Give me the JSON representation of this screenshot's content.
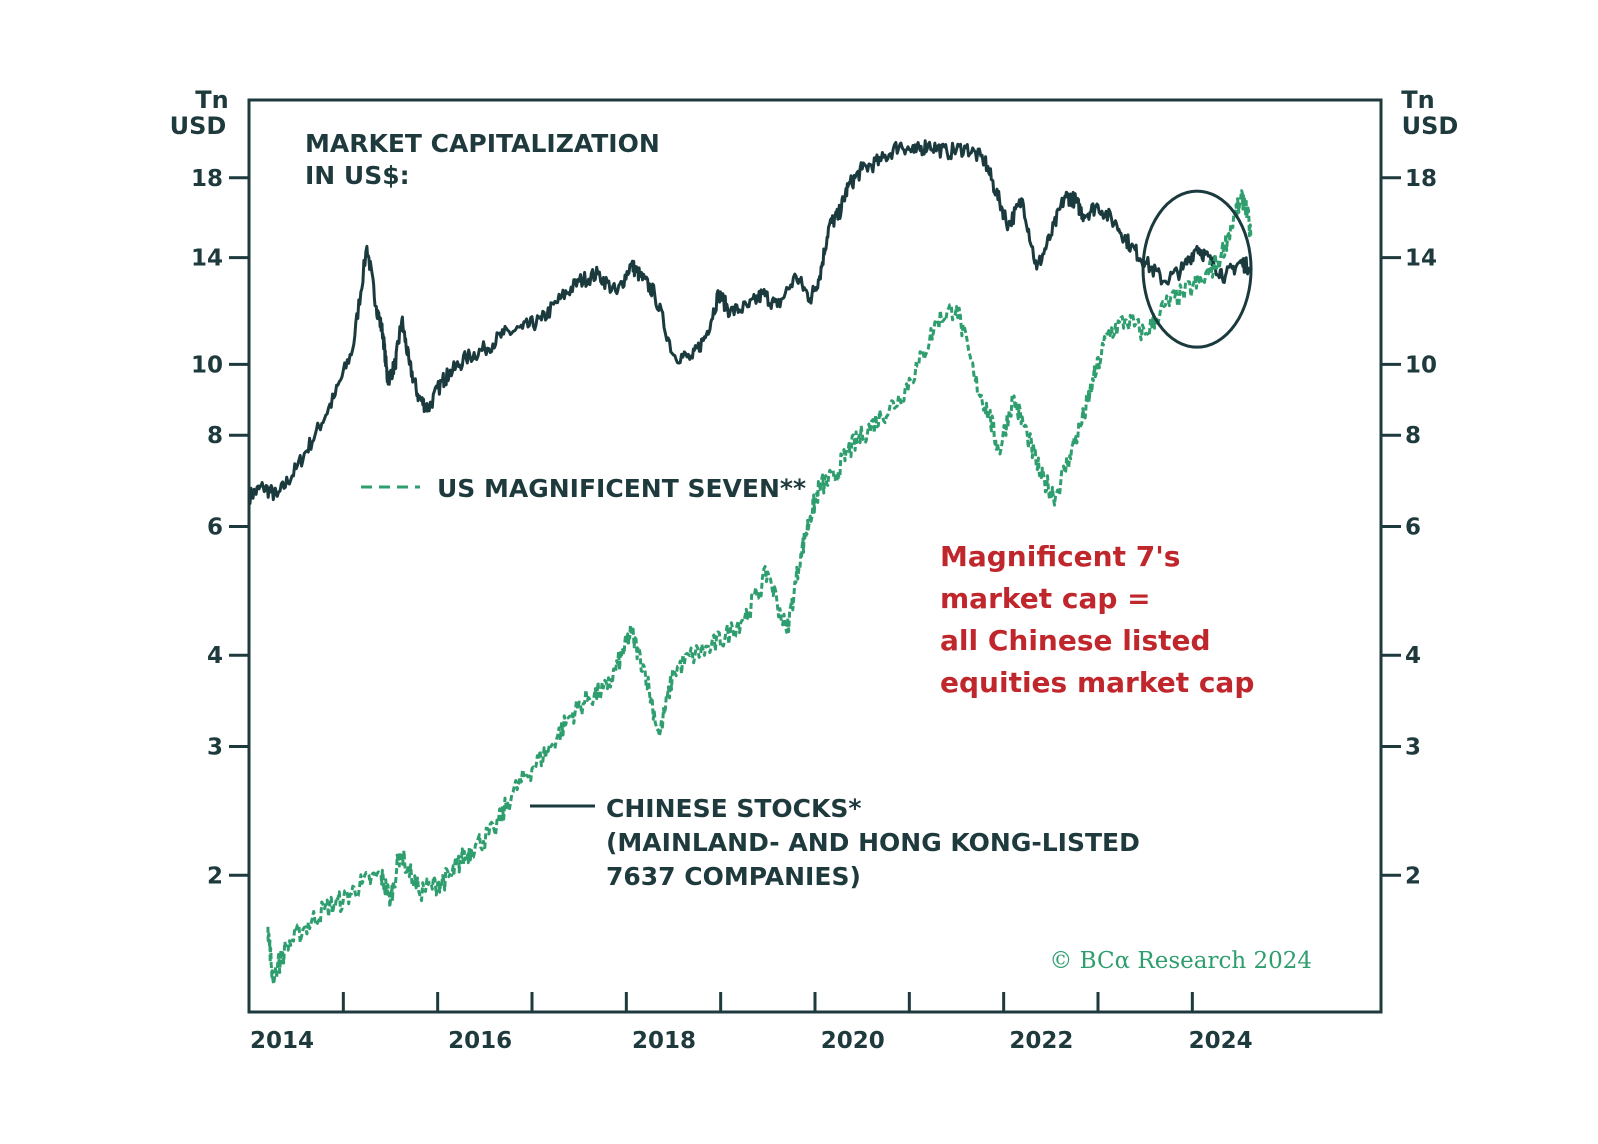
{
  "colors": {
    "chinese": "#1b3a3d",
    "mag7": "#2f9e6e",
    "annotation": "#c0272d",
    "axis": "#1f3a3d"
  },
  "chart_data": {
    "type": "line",
    "title": "MARKET CAPITALIZATION\nIN US$:",
    "title_lines": [
      "MARKET CAPITALIZATION",
      "IN US$:"
    ],
    "y_scale": "log",
    "ylim": [
      1.3,
      23
    ],
    "xlim": [
      2014.0,
      2026.0
    ],
    "y_unit_left": [
      "Tn",
      "USD"
    ],
    "y_unit_right": [
      "Tn",
      "USD"
    ],
    "y_ticks": [
      2,
      3,
      4,
      6,
      8,
      10,
      14,
      18
    ],
    "y_tick_labels": [
      "2",
      "3",
      "4",
      "6",
      "8",
      "10",
      "14",
      "18"
    ],
    "x_ticks": [
      2014,
      2015,
      2016,
      2017,
      2018,
      2019,
      2020,
      2021,
      2022,
      2023,
      2024
    ],
    "x_tick_label_values": [
      2014.35,
      2016.45,
      2018.4,
      2020.4,
      2022.4,
      2024.3
    ],
    "x_tick_labels": [
      "2014",
      "2016",
      "2018",
      "2020",
      "2022",
      "2024"
    ],
    "series": [
      {
        "name": "CHINESE STOCKS*",
        "legend_lines": [
          "CHINESE STOCKS*",
          "(MAINLAND- AND HONG KONG-LISTED",
          "7637 COMPANIES)"
        ],
        "style": "solid",
        "x": [
          2014.0,
          2014.15,
          2014.3,
          2014.5,
          2014.7,
          2014.9,
          2015.1,
          2015.25,
          2015.35,
          2015.42,
          2015.47,
          2015.55,
          2015.62,
          2015.7,
          2015.8,
          2015.9,
          2016.05,
          2016.12,
          2016.3,
          2016.5,
          2016.7,
          2016.9,
          2017.1,
          2017.3,
          2017.5,
          2017.7,
          2017.9,
          2018.05,
          2018.15,
          2018.3,
          2018.5,
          2018.7,
          2018.85,
          2018.98,
          2019.1,
          2019.3,
          2019.45,
          2019.6,
          2019.8,
          2019.95,
          2020.05,
          2020.15,
          2020.25,
          2020.35,
          2020.5,
          2020.7,
          2020.9,
          2021.05,
          2021.2,
          2021.4,
          2021.6,
          2021.8,
          2021.92,
          2022.05,
          2022.2,
          2022.35,
          2022.5,
          2022.65,
          2022.75,
          2022.85,
          2023.0,
          2023.2,
          2023.35,
          2023.5,
          2023.7,
          2023.9,
          2024.05,
          2024.2,
          2024.35,
          2024.5,
          2024.6
        ],
        "values": [
          6.6,
          6.8,
          6.6,
          7.2,
          8.0,
          9.0,
          10.5,
          14.5,
          12.0,
          11.0,
          9.5,
          10.0,
          11.5,
          10.0,
          9.0,
          8.7,
          9.5,
          9.7,
          10.2,
          10.5,
          11.0,
          11.2,
          11.5,
          12.3,
          13.0,
          13.3,
          12.5,
          13.7,
          13.2,
          12.5,
          10.3,
          10.2,
          11.0,
          12.5,
          11.8,
          12.0,
          12.5,
          12.0,
          13.2,
          12.3,
          13.2,
          15.5,
          16.0,
          17.5,
          18.5,
          19.0,
          20.0,
          19.5,
          20.0,
          19.5,
          19.8,
          19.0,
          17.2,
          15.5,
          16.8,
          13.5,
          15.0,
          17.0,
          16.8,
          16.0,
          16.5,
          15.5,
          14.5,
          13.8,
          13.0,
          13.5,
          14.5,
          13.8,
          13.2,
          13.8,
          13.6
        ]
      },
      {
        "name": "US MAGNIFICENT SEVEN**",
        "style": "dashed",
        "x": [
          2014.2,
          2014.25,
          2014.4,
          2014.6,
          2014.8,
          2015.0,
          2015.2,
          2015.4,
          2015.5,
          2015.6,
          2015.8,
          2016.0,
          2016.15,
          2016.25,
          2016.4,
          2016.6,
          2016.8,
          2017.0,
          2017.2,
          2017.4,
          2017.6,
          2017.8,
          2017.95,
          2018.05,
          2018.2,
          2018.35,
          2018.5,
          2018.7,
          2018.9,
          2019.1,
          2019.3,
          2019.5,
          2019.7,
          2019.85,
          2019.95,
          2020.05,
          2020.2,
          2020.35,
          2020.5,
          2020.7,
          2020.9,
          2021.1,
          2021.3,
          2021.5,
          2021.7,
          2021.85,
          2021.95,
          2022.1,
          2022.25,
          2022.4,
          2022.55,
          2022.7,
          2022.85,
          2022.95,
          2023.1,
          2023.3,
          2023.5,
          2023.7,
          2023.9,
          2024.1,
          2024.3,
          2024.45,
          2024.55,
          2024.62
        ],
        "values": [
          1.7,
          1.45,
          1.6,
          1.7,
          1.8,
          1.85,
          1.95,
          2.0,
          1.85,
          2.15,
          1.9,
          1.95,
          2.0,
          2.1,
          2.2,
          2.3,
          2.6,
          2.8,
          3.0,
          3.3,
          3.5,
          3.6,
          4.0,
          4.3,
          3.8,
          3.1,
          3.8,
          4.0,
          4.1,
          4.3,
          4.6,
          5.2,
          4.3,
          5.5,
          6.2,
          6.8,
          7.0,
          7.6,
          8.0,
          8.5,
          9.0,
          10.0,
          11.5,
          12.0,
          9.5,
          8.5,
          7.6,
          9.0,
          8.0,
          7.0,
          6.6,
          7.5,
          8.5,
          9.5,
          11.0,
          11.5,
          11.0,
          12.0,
          12.5,
          13.0,
          14.0,
          16.0,
          17.0,
          15.0
        ]
      }
    ],
    "annotation": {
      "lines": [
        "Magnificent 7's",
        "market cap =",
        "all Chinese listed",
        "equities market cap"
      ],
      "highlight_circle_center": {
        "x": 2024.05,
        "y": 13.5
      }
    },
    "legend_placement": "inside, left-center",
    "credit": "© BCα Research 2024",
    "grid": false
  }
}
